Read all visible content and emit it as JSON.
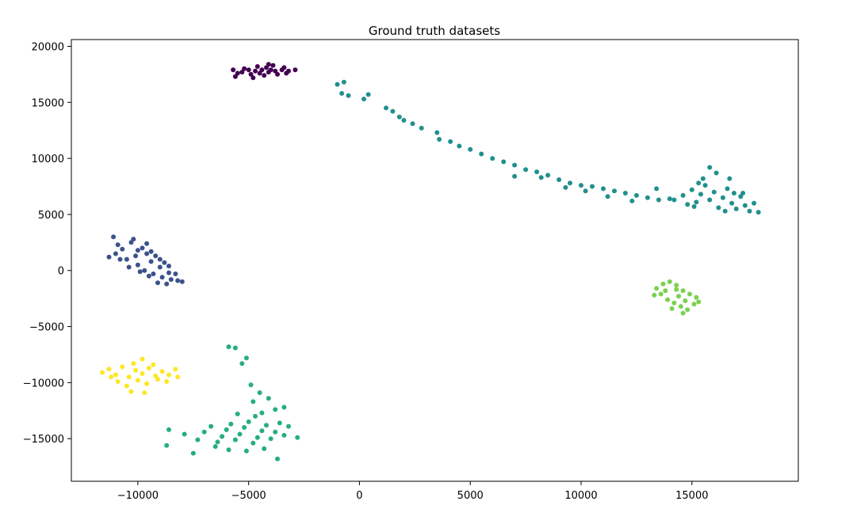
{
  "chart_data": {
    "type": "scatter",
    "title": "Ground truth datasets",
    "xlabel": "",
    "ylabel": "",
    "xlim": [
      -13000,
      19800
    ],
    "ylim": [
      -18800,
      20600
    ],
    "xticks": [
      -10000,
      -5000,
      0,
      5000,
      10000,
      15000
    ],
    "xtick_labels": [
      "−10000",
      "−5000",
      "0",
      "5000",
      "10000",
      "15000"
    ],
    "yticks": [
      20000,
      15000,
      10000,
      5000,
      0,
      -5000,
      -10000,
      -15000
    ],
    "ytick_labels": [
      "20000",
      "15000",
      "10000",
      "5000",
      "0",
      "−5000",
      "−10000",
      "−15000"
    ],
    "grid": false,
    "legend": "none",
    "series": [
      {
        "color": "#440154",
        "points": [
          [
            -5300,
            17700
          ],
          [
            -5000,
            17900
          ],
          [
            -4700,
            17800
          ],
          [
            -4400,
            17900
          ],
          [
            -4100,
            17700
          ],
          [
            -3800,
            17800
          ],
          [
            -3500,
            17900
          ],
          [
            -3200,
            17800
          ],
          [
            -4600,
            18200
          ],
          [
            -4200,
            18100
          ],
          [
            -3900,
            18300
          ],
          [
            -5500,
            17600
          ],
          [
            -4900,
            17500
          ],
          [
            -4300,
            17400
          ],
          [
            -3700,
            17500
          ],
          [
            -3300,
            17600
          ],
          [
            -5200,
            18000
          ],
          [
            -4500,
            17600
          ],
          [
            -4000,
            17900
          ],
          [
            -3400,
            18100
          ],
          [
            -5600,
            17300
          ],
          [
            -5700,
            17900
          ],
          [
            -2900,
            17900
          ],
          [
            -4800,
            17200
          ],
          [
            -4100,
            18400
          ]
        ]
      },
      {
        "color": "#3b528b",
        "points": [
          [
            -11000,
            1500
          ],
          [
            -10700,
            1900
          ],
          [
            -10500,
            1000
          ],
          [
            -10300,
            2500
          ],
          [
            -10100,
            1300
          ],
          [
            -10000,
            500
          ],
          [
            -9800,
            2000
          ],
          [
            -9700,
            0
          ],
          [
            -9600,
            1500
          ],
          [
            -9400,
            800
          ],
          [
            -9300,
            -300
          ],
          [
            -9200,
            1300
          ],
          [
            -9000,
            300
          ],
          [
            -8900,
            -600
          ],
          [
            -8800,
            700
          ],
          [
            -8600,
            -200
          ],
          [
            -8500,
            -800
          ],
          [
            -8300,
            -300
          ],
          [
            -8200,
            -900
          ],
          [
            -10800,
            1000
          ],
          [
            -10400,
            300
          ],
          [
            -9900,
            -100
          ],
          [
            -9500,
            -500
          ],
          [
            -9100,
            -1100
          ],
          [
            -8700,
            -1200
          ],
          [
            -10900,
            2300
          ],
          [
            -10200,
            2800
          ],
          [
            -11300,
            1200
          ],
          [
            -11100,
            3000
          ],
          [
            -8000,
            -1000
          ],
          [
            -9600,
            2400
          ],
          [
            -9400,
            1700
          ],
          [
            -9000,
            1000
          ],
          [
            -8600,
            400
          ],
          [
            -10000,
            1800
          ]
        ]
      },
      {
        "color": "#21908d",
        "points": [
          [
            -1000,
            16600
          ],
          [
            -700,
            16800
          ],
          [
            -800,
            15800
          ],
          [
            -500,
            15600
          ],
          [
            200,
            15300
          ],
          [
            400,
            15700
          ],
          [
            1200,
            14500
          ],
          [
            1500,
            14200
          ],
          [
            1800,
            13700
          ],
          [
            2000,
            13400
          ],
          [
            2400,
            13100
          ],
          [
            2800,
            12700
          ],
          [
            3500,
            12300
          ],
          [
            3600,
            11700
          ],
          [
            4100,
            11500
          ],
          [
            4500,
            11100
          ],
          [
            5000,
            10800
          ],
          [
            5500,
            10400
          ],
          [
            6000,
            10000
          ],
          [
            6500,
            9700
          ],
          [
            7000,
            9400
          ],
          [
            7500,
            9000
          ],
          [
            8000,
            8800
          ],
          [
            8500,
            8500
          ],
          [
            9000,
            8100
          ],
          [
            9500,
            7800
          ],
          [
            10000,
            7600
          ],
          [
            10500,
            7500
          ],
          [
            11000,
            7300
          ],
          [
            11500,
            7100
          ],
          [
            12000,
            6900
          ],
          [
            12500,
            6700
          ],
          [
            13000,
            6500
          ],
          [
            13500,
            6300
          ],
          [
            14000,
            6400
          ],
          [
            7000,
            8400
          ],
          [
            8200,
            8300
          ],
          [
            9300,
            7400
          ],
          [
            10200,
            7100
          ],
          [
            11200,
            6600
          ],
          [
            12300,
            6200
          ],
          [
            13400,
            7300
          ],
          [
            14200,
            6300
          ],
          [
            14600,
            6700
          ],
          [
            15000,
            7200
          ],
          [
            15200,
            6100
          ],
          [
            15400,
            6800
          ],
          [
            15600,
            7600
          ],
          [
            15800,
            6300
          ],
          [
            16000,
            7000
          ],
          [
            16200,
            5600
          ],
          [
            16400,
            6500
          ],
          [
            16600,
            7300
          ],
          [
            16800,
            6000
          ],
          [
            17000,
            5500
          ],
          [
            17200,
            6600
          ],
          [
            17400,
            5800
          ],
          [
            17600,
            5300
          ],
          [
            17800,
            6000
          ],
          [
            18000,
            5200
          ],
          [
            15100,
            5700
          ],
          [
            15500,
            8200
          ],
          [
            16100,
            8700
          ],
          [
            15800,
            9200
          ],
          [
            16500,
            5300
          ],
          [
            14800,
            5900
          ],
          [
            16900,
            6900
          ],
          [
            15300,
            7800
          ],
          [
            16700,
            8200
          ],
          [
            17300,
            6900
          ]
        ]
      },
      {
        "color": "#27ad81",
        "points": [
          [
            -8600,
            -14200
          ],
          [
            -7900,
            -14600
          ],
          [
            -7300,
            -15100
          ],
          [
            -7000,
            -14400
          ],
          [
            -6700,
            -13900
          ],
          [
            -6400,
            -15300
          ],
          [
            -6200,
            -14800
          ],
          [
            -6000,
            -14200
          ],
          [
            -5800,
            -13700
          ],
          [
            -5600,
            -15100
          ],
          [
            -5400,
            -14600
          ],
          [
            -5200,
            -14000
          ],
          [
            -5000,
            -13500
          ],
          [
            -4800,
            -15400
          ],
          [
            -4600,
            -14900
          ],
          [
            -4400,
            -14300
          ],
          [
            -4200,
            -13800
          ],
          [
            -4000,
            -15000
          ],
          [
            -3800,
            -14400
          ],
          [
            -3600,
            -13600
          ],
          [
            -3400,
            -14700
          ],
          [
            -3200,
            -13900
          ],
          [
            -3800,
            -12400
          ],
          [
            -4400,
            -12700
          ],
          [
            -4100,
            -11400
          ],
          [
            -4500,
            -10900
          ],
          [
            -4900,
            -10200
          ],
          [
            -5300,
            -8300
          ],
          [
            -5900,
            -6800
          ],
          [
            -5600,
            -6900
          ],
          [
            -5100,
            -7800
          ],
          [
            -4800,
            -11700
          ],
          [
            -6500,
            -15700
          ],
          [
            -5900,
            -16000
          ],
          [
            -5100,
            -16100
          ],
          [
            -4300,
            -15900
          ],
          [
            -3700,
            -16800
          ],
          [
            -2800,
            -14900
          ],
          [
            -7500,
            -16300
          ],
          [
            -8700,
            -15600
          ],
          [
            -4700,
            -13000
          ],
          [
            -5500,
            -12800
          ],
          [
            -3400,
            -12200
          ]
        ]
      },
      {
        "color": "#7ad151",
        "points": [
          [
            13400,
            -1600
          ],
          [
            13700,
            -1200
          ],
          [
            14000,
            -1000
          ],
          [
            14300,
            -1300
          ],
          [
            14600,
            -1800
          ],
          [
            14900,
            -2100
          ],
          [
            15200,
            -2400
          ],
          [
            13600,
            -2100
          ],
          [
            13900,
            -2600
          ],
          [
            14200,
            -2900
          ],
          [
            14500,
            -3200
          ],
          [
            14800,
            -3500
          ],
          [
            15100,
            -3000
          ],
          [
            13800,
            -1800
          ],
          [
            14400,
            -2300
          ],
          [
            14700,
            -2700
          ],
          [
            14100,
            -3400
          ],
          [
            13300,
            -2200
          ],
          [
            14600,
            -3800
          ],
          [
            15300,
            -2800
          ],
          [
            14300,
            -1700
          ]
        ]
      },
      {
        "color": "#fde725",
        "points": [
          [
            -11600,
            -9100
          ],
          [
            -11300,
            -8800
          ],
          [
            -11000,
            -9300
          ],
          [
            -10700,
            -8600
          ],
          [
            -10400,
            -9500
          ],
          [
            -10100,
            -8900
          ],
          [
            -9800,
            -9200
          ],
          [
            -9500,
            -8700
          ],
          [
            -9200,
            -9400
          ],
          [
            -8900,
            -9000
          ],
          [
            -8600,
            -9300
          ],
          [
            -8300,
            -8800
          ],
          [
            -10900,
            -9900
          ],
          [
            -10500,
            -10300
          ],
          [
            -10000,
            -9800
          ],
          [
            -9600,
            -10100
          ],
          [
            -9100,
            -9700
          ],
          [
            -8700,
            -9900
          ],
          [
            -10200,
            -8300
          ],
          [
            -9800,
            -7900
          ],
          [
            -9300,
            -8400
          ],
          [
            -10300,
            -10800
          ],
          [
            -9700,
            -10900
          ],
          [
            -11200,
            -9500
          ],
          [
            -8200,
            -9500
          ]
        ]
      }
    ]
  }
}
